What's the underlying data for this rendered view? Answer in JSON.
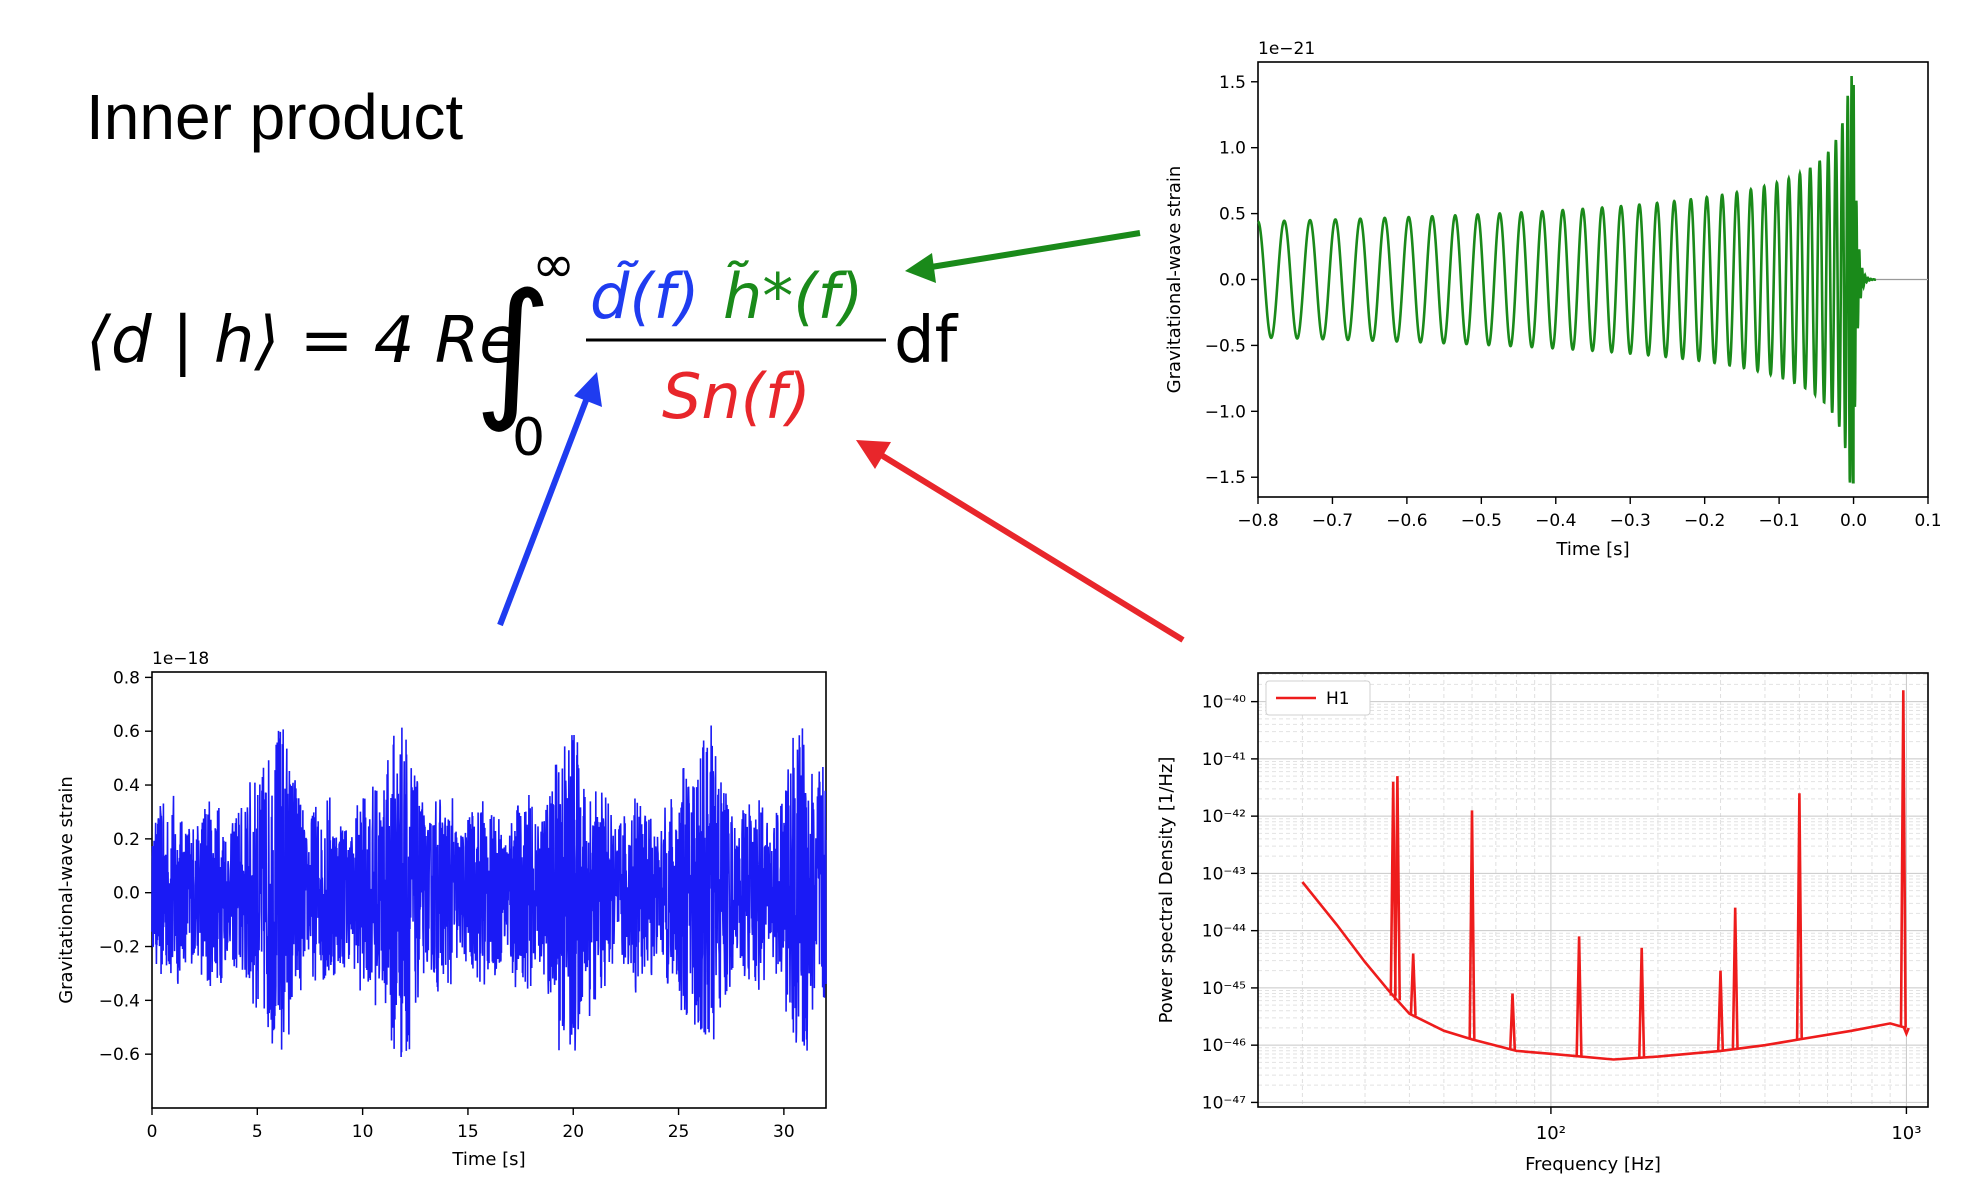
{
  "title": "Inner product",
  "formula": {
    "lhs": "⟨d | h⟩ = 4 Re",
    "upper": "∞",
    "lower": "0",
    "num_d": "d̃(f)",
    "num_h": "h̃*(f)",
    "den": "Sn(f)",
    "df": "df",
    "colors": {
      "d": "#1f3cf0",
      "h": "#1a8a1a",
      "s": "#e8262b"
    }
  },
  "chart_data": [
    {
      "id": "template",
      "type": "line",
      "xlabel": "Time [s]",
      "ylabel": "Gravitational-wave strain",
      "offset_label": "1e−21",
      "xlim": [
        -0.8,
        0.1
      ],
      "ylim": [
        -1.65,
        1.65
      ],
      "xticks": [
        -0.8,
        -0.7,
        -0.6,
        -0.5,
        -0.4,
        -0.3,
        -0.2,
        -0.1,
        0.0,
        0.1
      ],
      "xtick_labels": [
        "−0.8",
        "−0.7",
        "−0.6",
        "−0.5",
        "−0.4",
        "−0.3",
        "−0.2",
        "−0.1",
        "0.0",
        "0.1"
      ],
      "yticks": [
        -1.5,
        -1.0,
        -0.5,
        0.0,
        0.5,
        1.0,
        1.5
      ],
      "ytick_labels": [
        "−1.5",
        "−1.0",
        "−0.5",
        "0.0",
        "0.5",
        "1.0",
        "1.5"
      ],
      "color": "#1a8a1a",
      "series": [
        {
          "description": "chirp",
          "start_x": -0.8,
          "merger_x": 0.0,
          "ringdown_end_x": 0.03,
          "start_amplitude": 0.44,
          "peak_amplitude": 1.55,
          "cycles": 36
        }
      ]
    },
    {
      "id": "data",
      "type": "line",
      "xlabel": "Time [s]",
      "ylabel": "Gravitational-wave strain",
      "offset_label": "1e−18",
      "xlim": [
        0,
        32
      ],
      "ylim": [
        -0.8,
        0.82
      ],
      "xticks": [
        0,
        5,
        10,
        15,
        20,
        25,
        30
      ],
      "xtick_labels": [
        "0",
        "5",
        "10",
        "15",
        "20",
        "25",
        "30"
      ],
      "yticks": [
        -0.6,
        -0.4,
        -0.2,
        0.0,
        0.2,
        0.4,
        0.6,
        0.8
      ],
      "ytick_labels": [
        "−0.6",
        "−0.4",
        "−0.2",
        "0.0",
        "0.2",
        "0.4",
        "0.6",
        "0.8"
      ],
      "color": "#1a1af5",
      "series": [
        {
          "description": "noise",
          "peak_max": 0.77,
          "peak_min": -0.72,
          "envelope_peaks_x": [
            5.9,
            11.7,
            19.9,
            26.2,
            31.0
          ]
        }
      ]
    },
    {
      "id": "psd",
      "type": "line",
      "xlabel": "Frequency [Hz]",
      "ylabel": "Power spectral Density [1/Hz]",
      "xscale": "log",
      "yscale": "log",
      "xlim": [
        15,
        1150
      ],
      "ylim_exp": [
        -47,
        -39.5
      ],
      "xtick_labels": [
        "10²",
        "10³"
      ],
      "ytick_labels": [
        "10⁻⁴⁷",
        "10⁻⁴⁶",
        "10⁻⁴⁵",
        "10⁻⁴⁴",
        "10⁻⁴³",
        "10⁻⁴²",
        "10⁻⁴¹",
        "10⁻⁴⁰"
      ],
      "grid": true,
      "legend": {
        "placement": "top-left",
        "entries": [
          "H1"
        ]
      },
      "color": "#ee1c1c",
      "series": [
        {
          "name": "H1",
          "curve": [
            [
              20,
              -43.15
            ],
            [
              25,
              -43.9
            ],
            [
              30,
              -44.55
            ],
            [
              35,
              -45.05
            ],
            [
              40,
              -45.45
            ],
            [
              50,
              -45.75
            ],
            [
              60,
              -45.9
            ],
            [
              80,
              -46.1
            ],
            [
              100,
              -46.15
            ],
            [
              150,
              -46.25
            ],
            [
              200,
              -46.2
            ],
            [
              300,
              -46.1
            ],
            [
              400,
              -46.0
            ],
            [
              500,
              -45.9
            ],
            [
              700,
              -45.75
            ],
            [
              900,
              -45.62
            ],
            [
              1000,
              -45.7
            ]
          ],
          "lines": [
            [
              36,
              -41.4
            ],
            [
              37,
              -41.3
            ],
            [
              41,
              -44.4
            ],
            [
              60,
              -41.9
            ],
            [
              78,
              -45.1
            ],
            [
              120,
              -44.1
            ],
            [
              180,
              -44.3
            ],
            [
              300,
              -44.7
            ],
            [
              330,
              -43.6
            ],
            [
              500,
              -41.6
            ],
            [
              980,
              -39.8
            ],
            [
              1000,
              -45.8
            ]
          ]
        }
      ]
    }
  ]
}
